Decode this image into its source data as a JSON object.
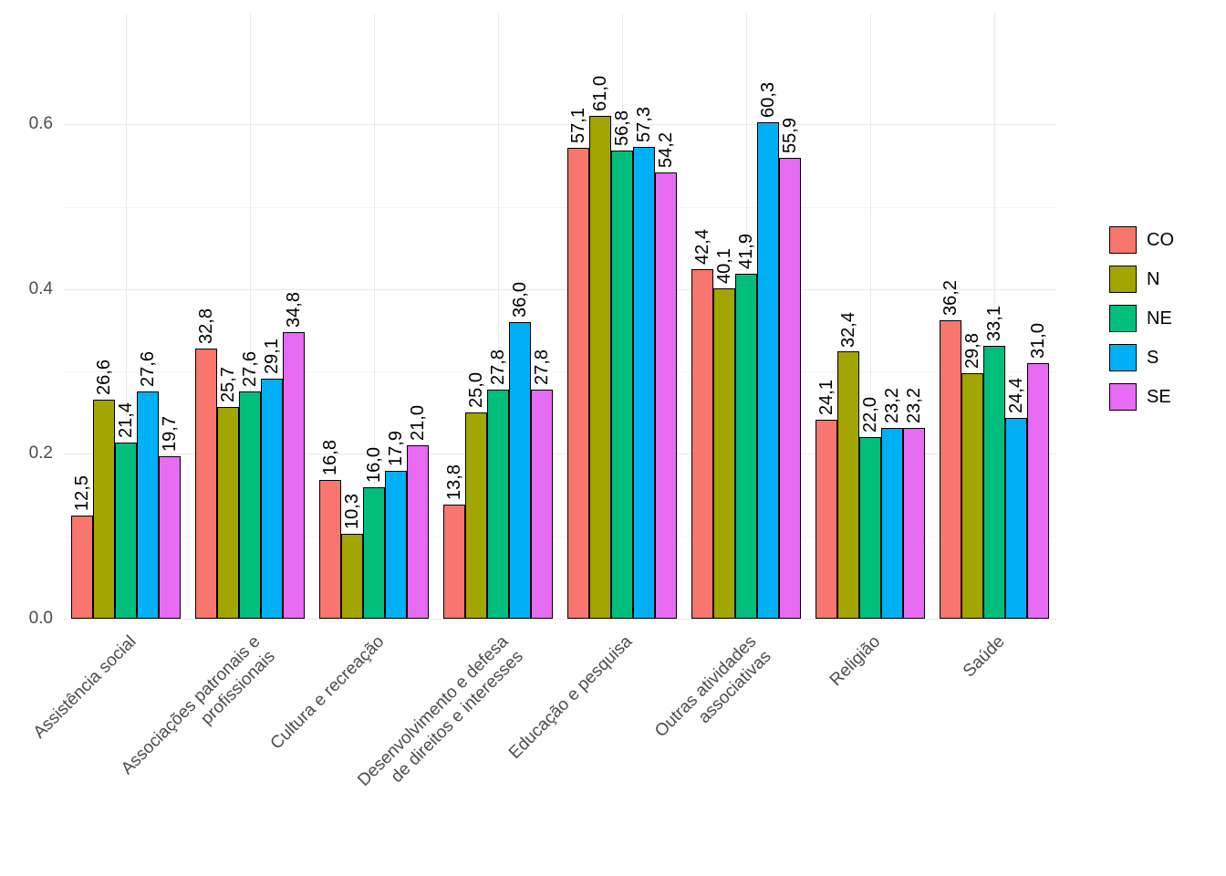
{
  "chart_data": {
    "type": "bar",
    "grouping": "dodge",
    "title": "",
    "xlabel": "",
    "ylabel": "",
    "grid": true,
    "legend_position": "right",
    "y_ticks": [
      {
        "label": "0.0",
        "value": 0
      },
      {
        "label": "0.2",
        "value": 20
      },
      {
        "label": "0.4",
        "value": 40
      },
      {
        "label": "0.6",
        "value": 60
      }
    ],
    "ylim": [
      0,
      65
    ],
    "value_label_format": "comma-decimal-1",
    "categories": [
      "Assistência social",
      "Associações patronais e\nprofissionais",
      "Cultura e recreação",
      "Desenvolvimento e defesa\nde direitos e interesses",
      "Educação e pesquisa",
      "Outras atividades\nassociativas",
      "Religião",
      "Saúde"
    ],
    "series": [
      {
        "name": "CO",
        "color": "#F8766D",
        "values": [
          12.5,
          32.8,
          16.8,
          13.8,
          57.1,
          42.4,
          24.1,
          36.2
        ]
      },
      {
        "name": "N",
        "color": "#A3A500",
        "values": [
          26.6,
          25.7,
          10.3,
          25.0,
          61.0,
          40.1,
          32.4,
          29.8
        ]
      },
      {
        "name": "NE",
        "color": "#00BF7D",
        "values": [
          21.4,
          27.6,
          16.0,
          27.8,
          56.8,
          41.9,
          22.0,
          33.1
        ]
      },
      {
        "name": "S",
        "color": "#00B0F6",
        "values": [
          27.6,
          29.1,
          17.9,
          36.0,
          57.3,
          60.3,
          23.2,
          24.4
        ]
      },
      {
        "name": "SE",
        "color": "#E76BF3",
        "values": [
          19.7,
          34.8,
          21.0,
          27.8,
          54.2,
          55.9,
          23.2,
          31.0
        ]
      }
    ],
    "colors": {
      "bar_border": "#000000",
      "grid_major": "#e9e9e9",
      "grid_minor": "#f5f5f5",
      "axis_text": "#4d4d4d",
      "value_text": "#000000",
      "background": "#ffffff"
    }
  }
}
